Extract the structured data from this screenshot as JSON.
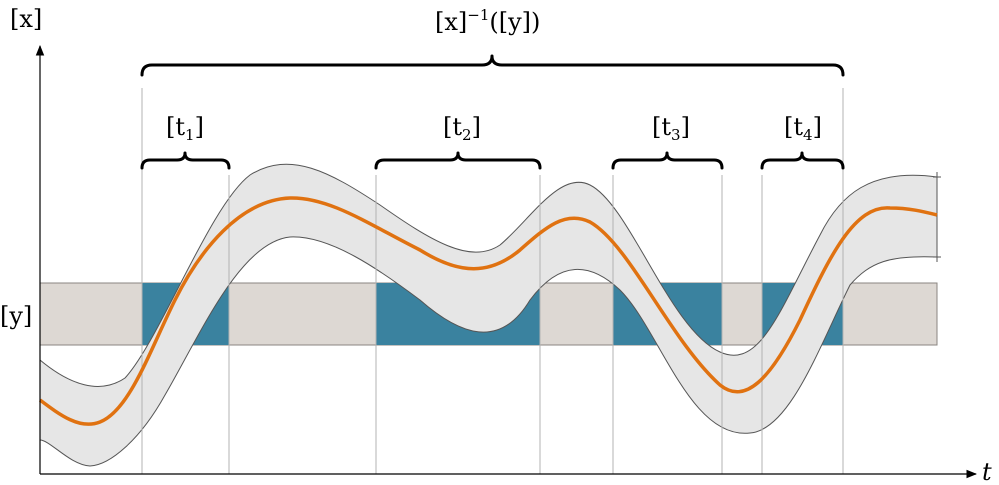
{
  "labels": {
    "y_axis": "[x]",
    "x_axis": "t",
    "band": "[y]",
    "top_brace": {
      "base": "[x]",
      "sup": "−1",
      "tail": "([y])"
    },
    "sub_braces": [
      {
        "open": "[t",
        "sub": "1",
        "close": "]"
      },
      {
        "open": "[t",
        "sub": "2",
        "close": "]"
      },
      {
        "open": "[t",
        "sub": "3",
        "close": "]"
      },
      {
        "open": "[t",
        "sub": "4",
        "close": "]"
      }
    ]
  },
  "colors": {
    "band": "#ddd8d3",
    "intersection": "#3a829f",
    "tube": "#e6e6e6",
    "tube_edge": "#555555",
    "trajectory": "#e07211",
    "guides": "#b3b3b3"
  }
}
